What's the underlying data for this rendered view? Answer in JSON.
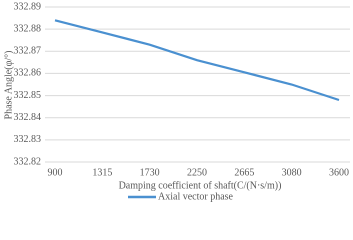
{
  "chart_data": {
    "type": "line",
    "y_label": "Phase Angle(φ/°)",
    "x_label": "Damping coefficient of shaft(C/(N·s/m))",
    "categories": [
      "900",
      "1315",
      "1730",
      "2250",
      "2665",
      "3080",
      "3600"
    ],
    "series": [
      {
        "name": "Axial vector phase",
        "color": "#4a90d0",
        "values": [
          332.884,
          332.8785,
          332.873,
          332.866,
          332.8605,
          332.855,
          332.848
        ]
      }
    ],
    "ylim": [
      332.82,
      332.89
    ],
    "yticks": [
      332.82,
      332.83,
      332.84,
      332.85,
      332.86,
      332.87,
      332.88,
      332.89
    ],
    "grid": true
  }
}
